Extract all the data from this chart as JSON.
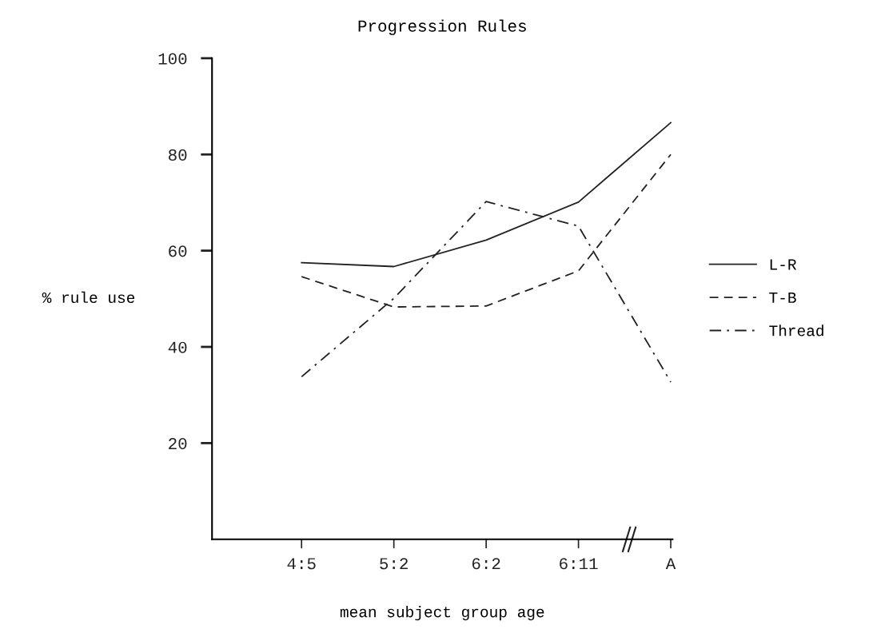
{
  "chart_data": {
    "type": "line",
    "title": "Progression Rules",
    "xlabel": "mean subject group age",
    "ylabel": "% rule use",
    "categories": [
      "4:5",
      "5:2",
      "6:2",
      "6:11",
      "A"
    ],
    "series": [
      {
        "name": "L-R",
        "color": "#222222",
        "line_style": "solid",
        "values": [
          57.5,
          56.7,
          62.2,
          70.1,
          86.6
        ]
      },
      {
        "name": "T-B",
        "color": "#222222",
        "line_style": "dashed",
        "values": [
          54.6,
          48.3,
          48.5,
          55.8,
          80
        ]
      },
      {
        "name": "Thread",
        "color": "#222222",
        "line_style": "dashdot",
        "values": [
          33.8,
          50.1,
          70.2,
          65.1,
          32.7
        ]
      }
    ],
    "ylim": [
      0,
      100
    ],
    "yticks": [
      20,
      40,
      60,
      80,
      100
    ],
    "grid": false,
    "legend": "right",
    "marker": "none"
  }
}
